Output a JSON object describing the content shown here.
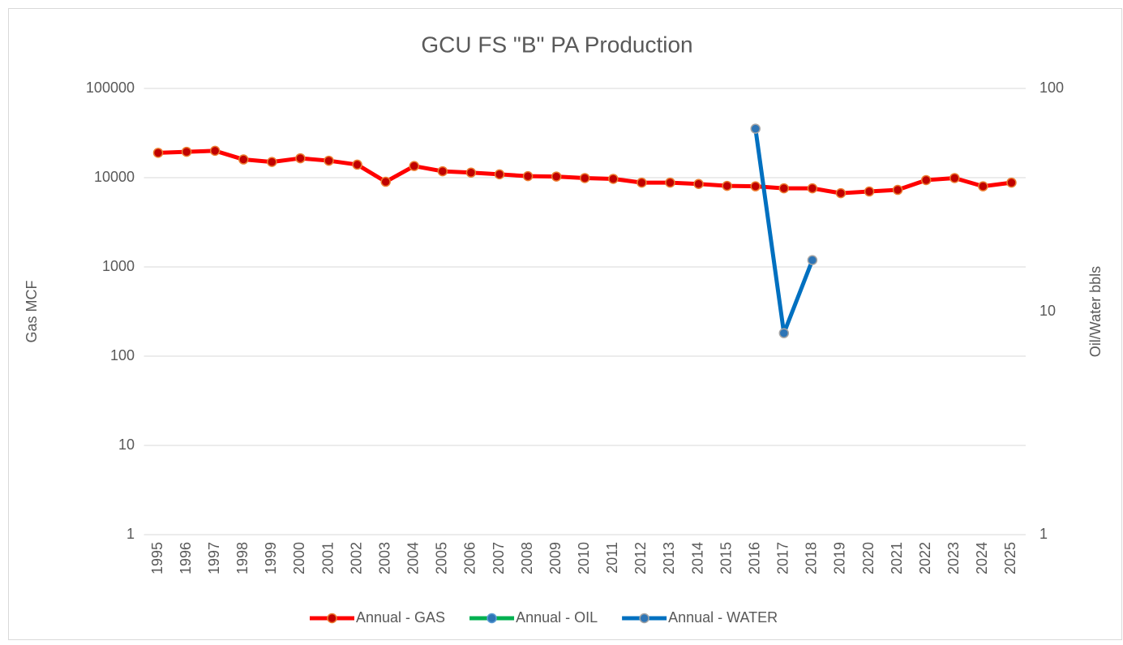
{
  "chart_data": {
    "type": "line",
    "title": "GCU FS \"B\" PA Production",
    "ylabel": "Gas MCF",
    "y2label": "Oil/Water bbls",
    "categories": [
      "1995",
      "1996",
      "1997",
      "1998",
      "1999",
      "2000",
      "2001",
      "2002",
      "2003",
      "2004",
      "2005",
      "2006",
      "2007",
      "2008",
      "2009",
      "2010",
      "2011",
      "2012",
      "2013",
      "2014",
      "2015",
      "2016",
      "2017",
      "2018",
      "2019",
      "2020",
      "2021",
      "2022",
      "2023",
      "2024",
      "2025"
    ],
    "series": [
      {
        "name": "Annual - GAS",
        "color": "#ff0000",
        "marker_color": "#c00000",
        "marker_edge": "#ed7d31",
        "values": [
          19000,
          19500,
          20000,
          16000,
          15000,
          16500,
          15500,
          14000,
          9000,
          13500,
          11800,
          11400,
          10900,
          10400,
          10300,
          9900,
          9700,
          8800,
          8800,
          8500,
          8100,
          8000,
          7600,
          7600,
          6700,
          7000,
          7300,
          9400,
          9900,
          8000,
          8800
        ]
      },
      {
        "name": "Annual - OIL",
        "color": "#00b050",
        "marker_color": "#2e75b6",
        "marker_edge": "#5b9bd5",
        "axis": "y2",
        "values": [
          null,
          null,
          null,
          null,
          null,
          null,
          null,
          null,
          null,
          null,
          null,
          null,
          null,
          null,
          null,
          null,
          null,
          null,
          null,
          null,
          null,
          null,
          null,
          null,
          null,
          null,
          null,
          null,
          null,
          null,
          null
        ]
      },
      {
        "name": "Annual - WATER",
        "color": "#0070c0",
        "marker_color": "#2e75b6",
        "marker_edge": "#a5a5a5",
        "axis": "y2",
        "values": [
          null,
          null,
          null,
          null,
          null,
          null,
          null,
          null,
          null,
          null,
          null,
          null,
          null,
          null,
          null,
          null,
          null,
          null,
          null,
          null,
          null,
          66,
          8,
          17,
          null,
          null,
          null,
          null,
          null,
          null,
          null
        ]
      }
    ],
    "log": true,
    "ylim": [
      1,
      100000
    ],
    "yticks": [
      1,
      10,
      100,
      1000,
      10000,
      100000
    ],
    "y2lim": [
      1,
      100
    ],
    "y2ticks": [
      1,
      10,
      100
    ],
    "grid": true,
    "legend": "bottom"
  }
}
